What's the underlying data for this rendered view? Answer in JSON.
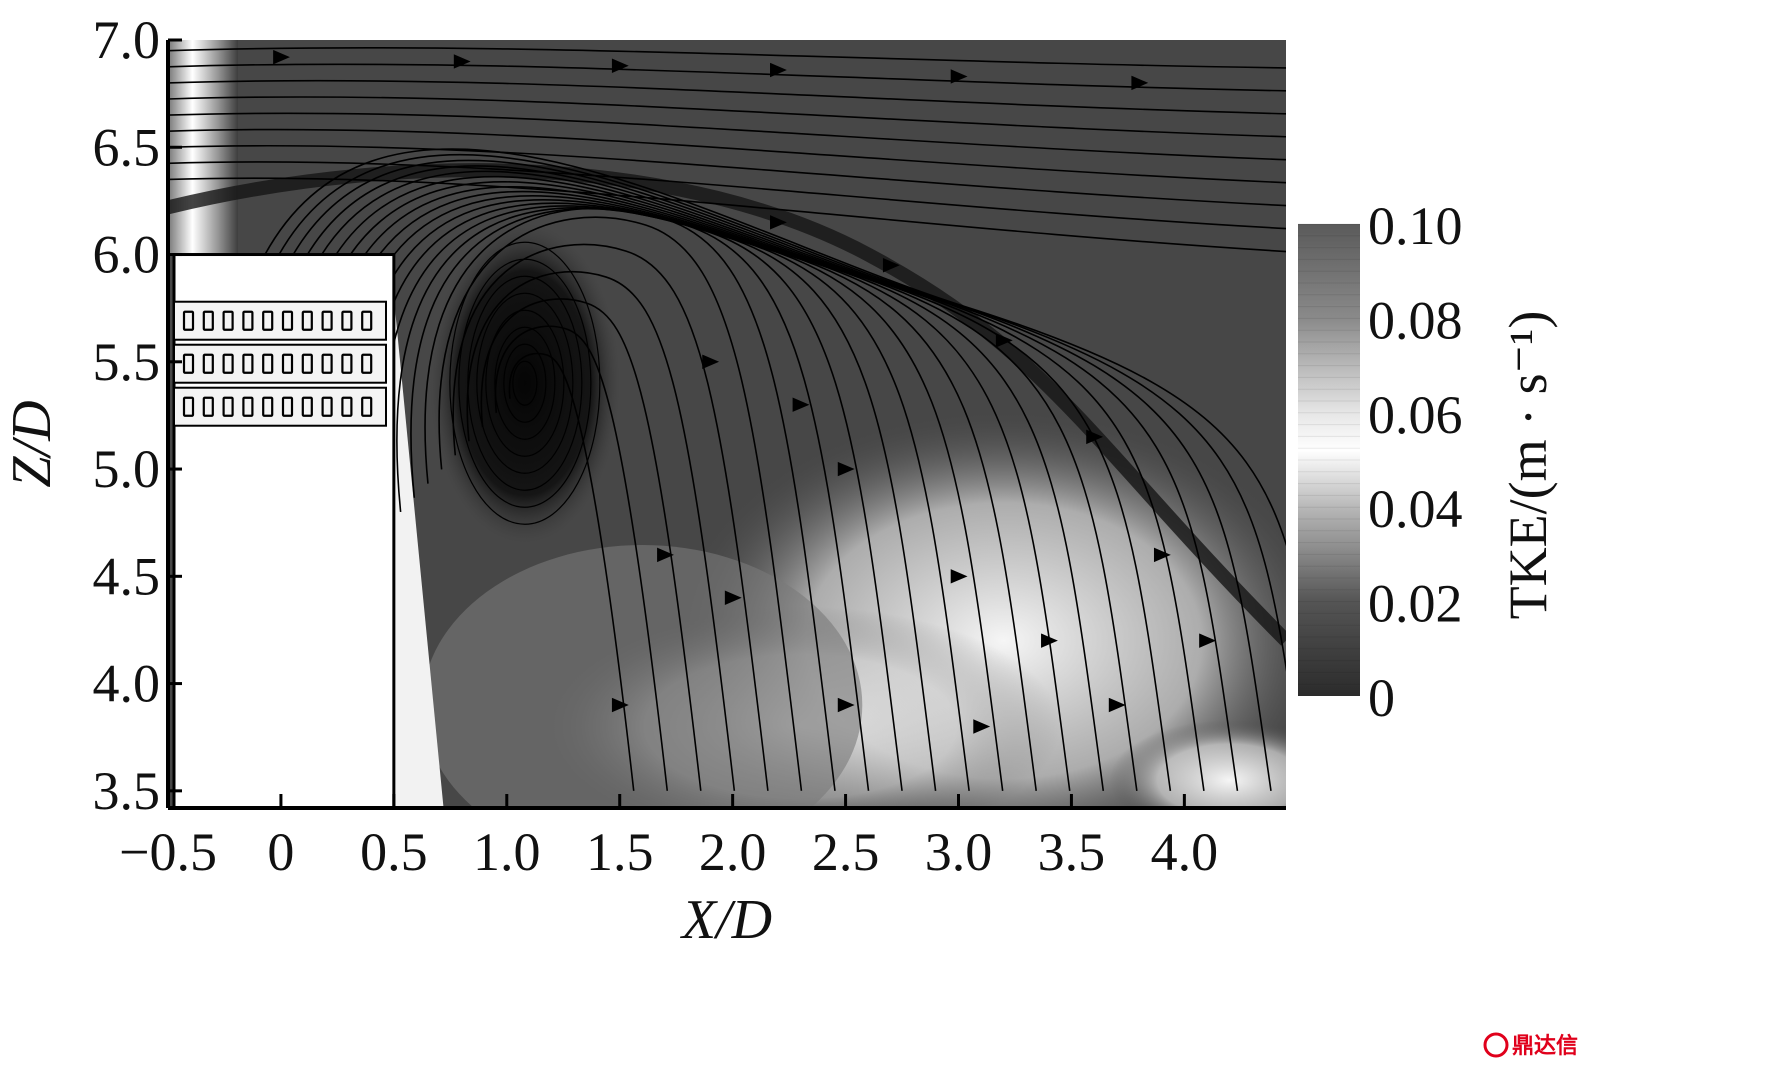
{
  "chart_data": {
    "type": "heatmap",
    "description_units": "X/D and Z/D are normalized by D; color = TKE",
    "xlabel": "X/D",
    "ylabel": "Z/D",
    "xlim": [
      -0.5,
      4.45
    ],
    "ylim": [
      3.42,
      7.0
    ],
    "xticks": [
      -0.5,
      0,
      0.5,
      1.0,
      1.5,
      2.0,
      2.5,
      3.0,
      3.5,
      4.0
    ],
    "xtick_labels": [
      "−0.5",
      "0",
      "0.5",
      "1.0",
      "1.5",
      "2.0",
      "2.5",
      "3.0",
      "3.5",
      "4.0"
    ],
    "yticks": [
      3.5,
      4.0,
      4.5,
      5.0,
      5.5,
      6.0,
      6.5,
      7.0
    ],
    "ytick_labels": [
      "3.5",
      "4.0",
      "4.5",
      "5.0",
      "5.5",
      "6.0",
      "6.5",
      "7.0"
    ],
    "colorbar": {
      "label": "TKE/(m · s⁻¹)",
      "range": [
        0,
        0.1
      ],
      "ticks": [
        0,
        0.02,
        0.04,
        0.06,
        0.08,
        0.1
      ],
      "tick_labels": [
        "0",
        "0.02",
        "0.04",
        "0.06",
        "0.08",
        "0.10"
      ],
      "scale": "gray: 0 dark, ~0.05 white, 0.10 mid-gray"
    },
    "building": {
      "x_range": [
        -0.5,
        0.5
      ],
      "z_top": 6.0,
      "window_rows": 3,
      "windows_per_row": 10
    },
    "vortex_center": [
      1.1,
      5.45
    ],
    "flow": "streamlines left-to-right, separation at building roof edge, recirculating vortex downstream"
  },
  "watermark": {
    "text": "鼎达信"
  }
}
